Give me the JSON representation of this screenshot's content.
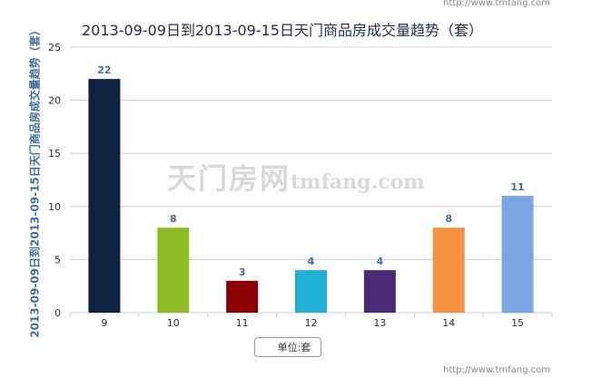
{
  "watermark_url": "http://www.tmfang.com",
  "footer_url": "http://www.tmfang.com",
  "watermark_logo": "天门房网",
  "watermark_domain": "tmfang.com",
  "chart_data": {
    "type": "bar",
    "title": "2013-09-09日到2013-09-15日天门商品房成交量趋势（套）",
    "xlabel": "",
    "ylabel": "2013-09-09日到2013-09-15日天门商品房成交量趋势（套）",
    "categories": [
      "9",
      "10",
      "11",
      "12",
      "13",
      "14",
      "15"
    ],
    "values": [
      22,
      8,
      3,
      4,
      4,
      8,
      11
    ],
    "bar_colors": [
      "#0f2340",
      "#8fbc24",
      "#8b0000",
      "#1fb0d4",
      "#4b2a74",
      "#f49242",
      "#7ba6e3"
    ],
    "ylim": [
      0,
      25
    ],
    "yticks": [
      0,
      5,
      10,
      15,
      20,
      25
    ],
    "grid": true,
    "data_labels": true,
    "legend": "单位:套",
    "legend_position": "bottom-center",
    "label_color": "#3f6f9f",
    "grid_color": "#d0d0d0",
    "axis_color": "#c0d0e0"
  }
}
